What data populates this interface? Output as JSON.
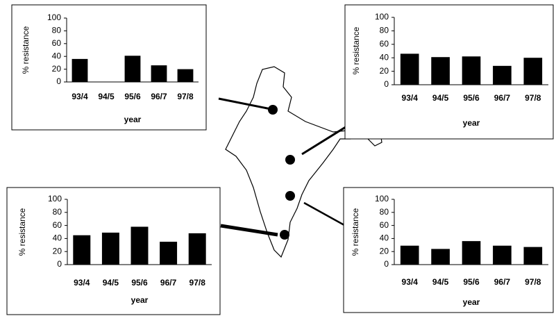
{
  "chart_data": [
    {
      "type": "bar",
      "ylabel": "% resistance",
      "xlabel": "year",
      "categories": [
        "93/4",
        "94/5",
        "95/6",
        "96/7",
        "97/8"
      ],
      "values": [
        36,
        null,
        41,
        26,
        20
      ],
      "color": "#000000",
      "ylim": [
        0,
        100
      ],
      "yticks": [
        0,
        20,
        40,
        60,
        80,
        100
      ]
    },
    {
      "type": "bar",
      "ylabel": "% resistance",
      "xlabel": "year",
      "categories": [
        "93/4",
        "94/5",
        "95/6",
        "96/7",
        "97/8"
      ],
      "values": [
        46,
        41,
        42,
        28,
        40
      ],
      "color": "#000000",
      "ylim": [
        0,
        100
      ],
      "yticks": [
        0,
        20,
        40,
        60,
        80,
        100
      ]
    },
    {
      "type": "bar",
      "ylabel": "% resistance",
      "xlabel": "year",
      "categories": [
        "93/4",
        "94/5",
        "95/6",
        "96/7",
        "97/8"
      ],
      "values": [
        45,
        49,
        58,
        35,
        48
      ],
      "color": "#000000",
      "ylim": [
        0,
        100
      ],
      "yticks": [
        0,
        20,
        40,
        60,
        80,
        100
      ]
    },
    {
      "type": "bar",
      "ylabel": "% resistance",
      "xlabel": "year",
      "categories": [
        "93/4",
        "94/5",
        "95/6",
        "96/7",
        "97/8"
      ],
      "values": [
        29,
        24,
        36,
        29,
        27
      ],
      "color": "#000000",
      "ylim": [
        0,
        100
      ],
      "yticks": [
        0,
        20,
        40,
        60,
        80,
        100
      ]
    }
  ]
}
